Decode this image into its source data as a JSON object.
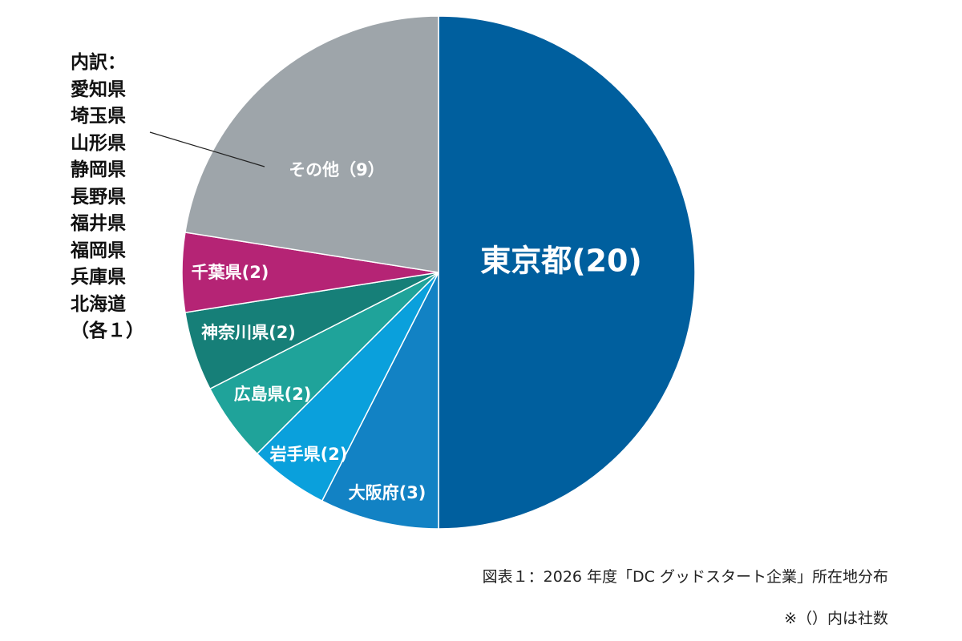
{
  "chart_data": {
    "type": "pie",
    "title": "",
    "start_angle_deg": 0,
    "direction": "clockwise",
    "slices": [
      {
        "label": "東京都(20)",
        "name": "東京都",
        "value": 20,
        "color": "#005f9e"
      },
      {
        "label": "大阪府(3)",
        "name": "大阪府",
        "value": 3,
        "color": "#1282c4"
      },
      {
        "label": "岩手県(2)",
        "name": "岩手県",
        "value": 2,
        "color": "#0aa0dc"
      },
      {
        "label": "広島県(2)",
        "name": "広島県",
        "value": 2,
        "color": "#1fa39a"
      },
      {
        "label": "神奈川県(2)",
        "name": "神奈川県",
        "value": 2,
        "color": "#167f78"
      },
      {
        "label": "千葉県(2)",
        "name": "千葉県",
        "value": 2,
        "color": "#b52475"
      },
      {
        "label": "その他（9）",
        "name": "その他",
        "value": 9,
        "color": "#9ea5aa"
      }
    ],
    "other_breakdown": {
      "heading": "内訳：",
      "items": [
        "愛知県",
        "埼玉県",
        "山形県",
        "静岡県",
        "長野県",
        "福井県",
        "福岡県",
        "兵庫県",
        "北海道"
      ],
      "footer": "（各１）"
    },
    "caption": "図表１：2026 年度「DC グッドスタート企業」所在地分布",
    "note": "※（）内は社数"
  }
}
